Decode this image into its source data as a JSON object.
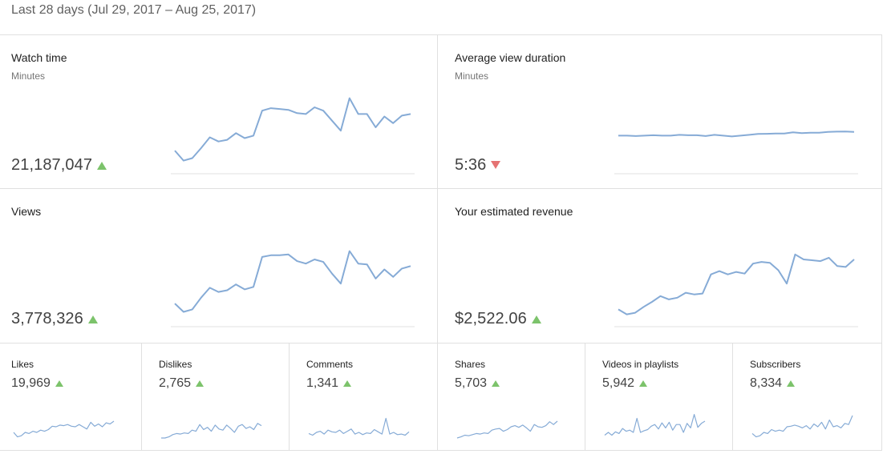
{
  "header": {
    "date_range": "Last 28 days (Jul 29, 2017 – Aug 25, 2017)"
  },
  "colors": {
    "line": "#86abd6",
    "up": "#7cc36b",
    "down": "#e57373",
    "divider": "#e0e0e0"
  },
  "big_cards": [
    {
      "title": "Watch time",
      "subtitle": "Minutes",
      "value": "21,187,047",
      "trend": "up",
      "series": [
        22,
        10,
        13,
        25,
        38,
        33,
        35,
        43,
        37,
        40,
        70,
        73,
        72,
        71,
        67,
        66,
        74,
        70,
        58,
        46,
        85,
        66,
        66,
        50,
        63,
        55,
        64,
        66
      ]
    },
    {
      "title": "Average view duration",
      "subtitle": "Minutes",
      "value": "5:36",
      "trend": "down",
      "series": [
        40,
        40,
        39.5,
        40,
        40.5,
        40,
        40,
        41,
        40.5,
        40.5,
        39.5,
        41,
        40,
        39,
        40,
        41,
        42,
        42.2,
        42.5,
        42.5,
        44,
        43,
        43.5,
        43.5,
        44.5,
        44.8,
        45,
        44.5
      ]
    },
    {
      "title": "Views",
      "subtitle": "",
      "value": "3,778,326",
      "trend": "up",
      "series": [
        22,
        12,
        15,
        29,
        41,
        36,
        38,
        45,
        39,
        42,
        78,
        80,
        80,
        81,
        73,
        70,
        75,
        72,
        58,
        46,
        85,
        70,
        69,
        52,
        63,
        54,
        64,
        67
      ]
    },
    {
      "title": "Your estimated revenue",
      "subtitle": "",
      "value": "$2,522.06",
      "trend": "up",
      "series": [
        15,
        9,
        11,
        18,
        24,
        31,
        27,
        29,
        35,
        33,
        34,
        57,
        61,
        57,
        60,
        58,
        70,
        72,
        71,
        62,
        46,
        81,
        75,
        74,
        73,
        77,
        67,
        66,
        75
      ]
    }
  ],
  "small_cards": [
    {
      "title": "Likes",
      "value": "19,969",
      "trend": "up",
      "series": [
        20,
        12,
        14,
        20,
        18,
        22,
        20,
        24,
        22,
        25,
        31,
        30,
        33,
        32,
        34,
        31,
        30,
        34,
        30,
        26,
        38,
        31,
        35,
        30,
        37,
        35,
        40
      ]
    },
    {
      "title": "Dislikes",
      "value": "2,765",
      "trend": "up",
      "series": [
        10,
        10,
        12,
        16,
        18,
        17,
        19,
        18,
        24,
        22,
        34,
        25,
        29,
        22,
        33,
        26,
        24,
        33,
        27,
        20,
        31,
        34,
        27,
        30,
        25,
        36,
        32
      ]
    },
    {
      "title": "Comments",
      "value": "1,341",
      "trend": "up",
      "series": [
        18,
        15,
        20,
        22,
        17,
        24,
        21,
        20,
        24,
        18,
        22,
        26,
        17,
        20,
        16,
        19,
        18,
        25,
        21,
        17,
        45,
        17,
        20,
        16,
        17,
        15,
        21
      ]
    },
    {
      "title": "Shares",
      "value": "5,703",
      "trend": "up",
      "series": [
        10,
        12,
        15,
        14,
        16,
        18,
        17,
        19,
        18,
        24,
        26,
        27,
        22,
        25,
        30,
        32,
        29,
        33,
        28,
        22,
        34,
        30,
        29,
        32,
        39,
        34,
        40
      ]
    },
    {
      "title": "Videos in playlists",
      "value": "5,942",
      "trend": "up",
      "series": [
        15,
        20,
        15,
        21,
        18,
        27,
        22,
        24,
        20,
        45,
        20,
        23,
        25,
        31,
        34,
        26,
        37,
        28,
        38,
        24,
        34,
        34,
        20,
        36,
        28,
        52,
        29,
        36,
        40
      ]
    },
    {
      "title": "Subscribers",
      "value": "8,334",
      "trend": "up",
      "series": [
        18,
        12,
        14,
        20,
        18,
        25,
        22,
        24,
        22,
        30,
        31,
        33,
        31,
        28,
        32,
        26,
        35,
        30,
        38,
        26,
        42,
        30,
        32,
        28,
        36,
        34,
        50
      ]
    }
  ]
}
